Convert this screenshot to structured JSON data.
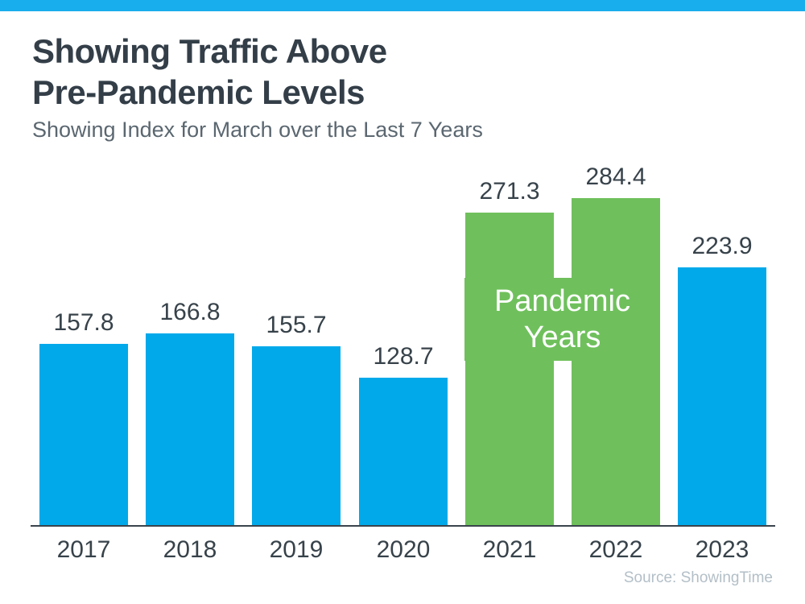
{
  "page": {
    "background": "#ffffff",
    "top_bar_color": "#18ADEC"
  },
  "header": {
    "title_line1": "Showing Traffic Above",
    "title_line2": "Pre-Pandemic Levels",
    "subtitle": "Showing Index for March over the Last 7 Years"
  },
  "chart_data": {
    "type": "bar",
    "title": "Showing Traffic Above Pre-Pandemic Levels",
    "subtitle": "Showing Index for March over the Last 7 Years",
    "categories": [
      "2017",
      "2018",
      "2019",
      "2020",
      "2021",
      "2022",
      "2023"
    ],
    "values": [
      157.8,
      166.8,
      155.7,
      128.7,
      271.3,
      284.4,
      223.9
    ],
    "bar_colors": [
      "#01A9EA",
      "#01A9EA",
      "#01A9EA",
      "#01A9EA",
      "#6FC05C",
      "#6FC05C",
      "#01A9EA"
    ],
    "default_bar_color": "#01A9EA",
    "highlight_bar_color": "#6FC05C",
    "highlight_categories": [
      "2021",
      "2022"
    ],
    "value_label_color": "#37424A",
    "axis_label_color": "#37424A",
    "ylim": [
      0,
      300
    ],
    "grid": false,
    "legend": null,
    "xlabel": "",
    "ylabel": "",
    "annotation": {
      "line1": "Pandemic",
      "line2": "Years",
      "text_color": "#ffffff",
      "background": "#6FC05C"
    }
  },
  "footer": {
    "source": "Source: ShowingTime"
  }
}
